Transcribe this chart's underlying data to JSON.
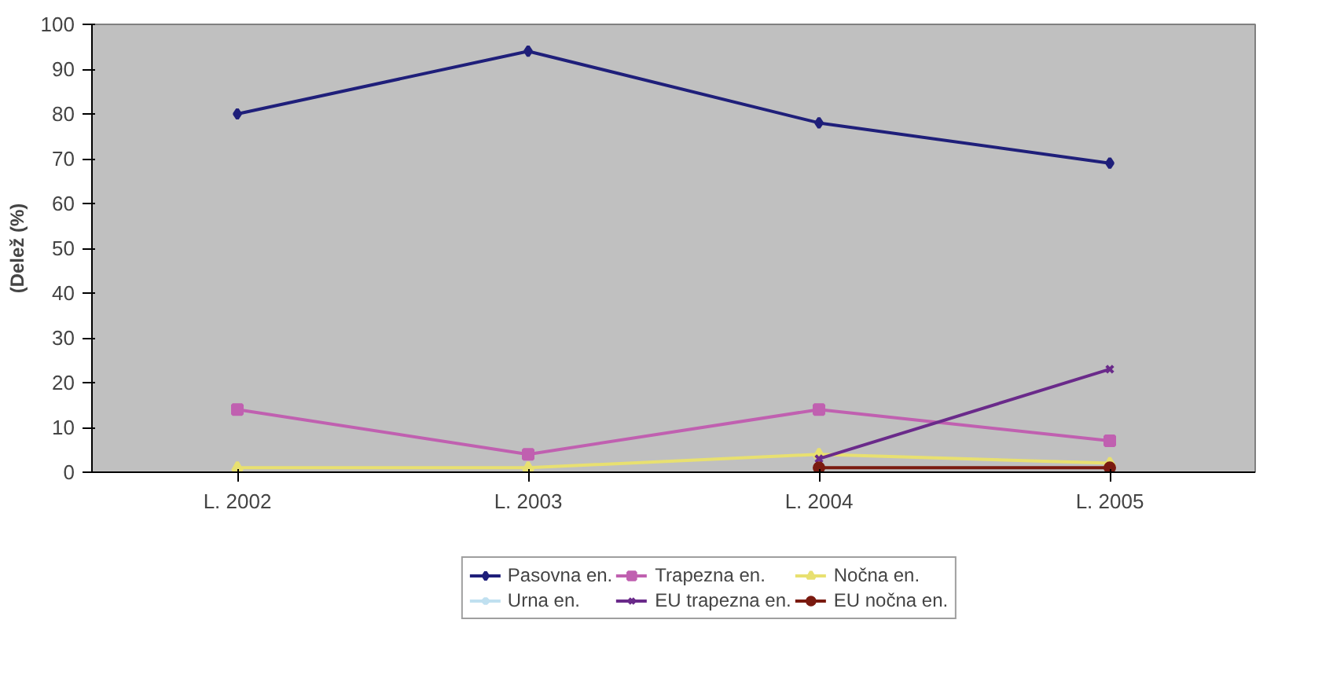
{
  "chart_data": {
    "type": "line",
    "ylabel": "(Delež (%)",
    "categories": [
      "L. 2002",
      "L. 2003",
      "L. 2004",
      "L. 2005"
    ],
    "ylim": [
      0,
      100
    ],
    "yticks": [
      0,
      10,
      20,
      30,
      40,
      50,
      60,
      70,
      80,
      90,
      100
    ],
    "grid": false,
    "legend": "bottom",
    "series": [
      {
        "name": "Pasovna en.",
        "color": "#1f1f7a",
        "marker": "diamond",
        "values": [
          80,
          94,
          78,
          69
        ]
      },
      {
        "name": "Trapezna en.",
        "color": "#c060b0",
        "marker": "square",
        "values": [
          14,
          4,
          14,
          7
        ]
      },
      {
        "name": "Nočna en.",
        "color": "#e8e070",
        "marker": "triangle",
        "values": [
          1,
          1,
          4,
          2
        ]
      },
      {
        "name": "Urna en.",
        "color": "#c0e0f0",
        "marker": "cross",
        "values": [
          null,
          null,
          null,
          null
        ]
      },
      {
        "name": "EU trapezna en.",
        "color": "#6a2a8a",
        "marker": "x",
        "values": [
          null,
          null,
          3,
          23
        ]
      },
      {
        "name": "EU nočna en.",
        "color": "#7a1a10",
        "marker": "circle",
        "values": [
          null,
          null,
          1,
          1
        ]
      }
    ]
  }
}
